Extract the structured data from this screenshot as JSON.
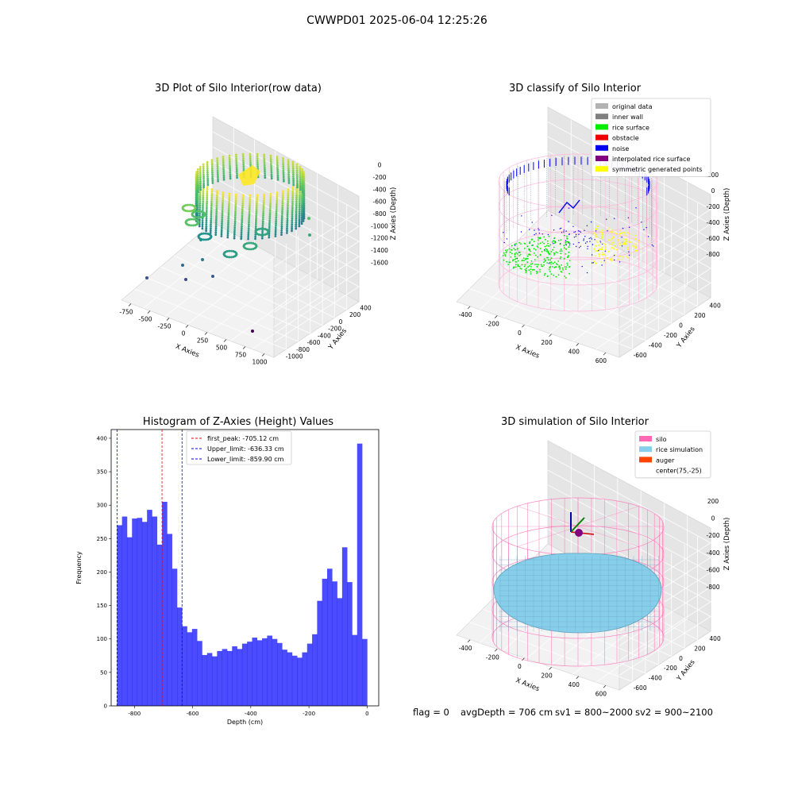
{
  "suptitle": "CWWPD01 2025-06-04 12:25:26",
  "status": {
    "flag": "flag = 0",
    "avg": "avgDepth = 706 cm",
    "sv1": "sv1 = 800~2000",
    "sv2": "sv2 = 900~2100"
  },
  "chart_data": [
    {
      "type": "scatter",
      "title": "3D Plot of Silo Interior(row data)",
      "xlabel": "X Axies",
      "ylabel": "Y Axies",
      "zlabel": "Z Axies (Depth)",
      "x_ticks": [
        "-750",
        "-500",
        "-250",
        "0",
        "250",
        "500",
        "750",
        "1000"
      ],
      "y_ticks": [
        "-1000",
        "-800",
        "-600",
        "-400",
        "-200",
        "0",
        "200",
        "400"
      ],
      "z_ticks": [
        "0",
        "-200",
        "-400",
        "-600",
        "-800",
        "-1000",
        "-1200",
        "-1400",
        "-1600"
      ],
      "colormap": [
        "#440154",
        "#3b528b",
        "#21918c",
        "#5ec962",
        "#fde725"
      ]
    },
    {
      "type": "scatter",
      "title": "3D classify of Silo Interior",
      "xlabel": "X Axies",
      "ylabel": "Y Axies",
      "zlabel": "Z Axies (Depth)",
      "x_ticks": [
        "-400",
        "-200",
        "0",
        "200",
        "400",
        "600"
      ],
      "y_ticks": [
        "-600",
        "-400",
        "-200",
        "0",
        "200",
        "400"
      ],
      "z_ticks": [
        "200",
        "0",
        "-200",
        "-400",
        "-600",
        "-800"
      ],
      "legend_position": "top-right",
      "legend": [
        {
          "label": "original data",
          "color": "#b3b3b3"
        },
        {
          "label": "inner wall",
          "color": "#808080"
        },
        {
          "label": "rice surface",
          "color": "#00ee00"
        },
        {
          "label": "obstacle",
          "color": "#ee0000"
        },
        {
          "label": "noise",
          "color": "#0000ee"
        },
        {
          "label": "interpolated rice surface",
          "color": "#800080"
        },
        {
          "label": "symmetric generated points",
          "color": "#ffff00"
        }
      ]
    },
    {
      "type": "bar",
      "title": "Histogram of Z-Axies (Height) Values",
      "xlabel": "Depth (cm)",
      "ylabel": "Frequency",
      "xlim": [
        -880,
        40
      ],
      "ylim": [
        0,
        413
      ],
      "x_ticks": [
        -800,
        -600,
        -400,
        -200,
        0
      ],
      "y_ticks": [
        0,
        50,
        100,
        150,
        200,
        250,
        300,
        350,
        400
      ],
      "bin_start": -859.9,
      "bin_width": 17.2,
      "values": [
        270,
        283,
        252,
        280,
        281,
        275,
        293,
        283,
        241,
        305,
        257,
        205,
        147,
        119,
        110,
        115,
        97,
        76,
        79,
        74,
        82,
        85,
        82,
        89,
        85,
        93,
        96,
        102,
        98,
        101,
        105,
        100,
        94,
        84,
        80,
        75,
        72,
        80,
        93,
        107,
        157,
        190,
        205,
        186,
        161,
        237,
        185,
        106,
        392,
        100
      ],
      "color": "#0000ff",
      "lines": [
        {
          "label": "first_peak: -705.12 cm",
          "x": -705.12,
          "color": "#ff0000"
        },
        {
          "label": "Upper_limit: -636.33 cm",
          "x": -636.33,
          "color": "#0000ff"
        },
        {
          "label": "Lower_limit: -859.90 cm",
          "x": -859.9,
          "color": "#0000ff"
        }
      ],
      "legend_position": "top-center"
    },
    {
      "type": "scatter",
      "title": "3D simulation of Silo Interior",
      "xlabel": "X Axies",
      "ylabel": "Y Axies",
      "zlabel": "Z Axies (Depth)",
      "x_ticks": [
        "-400",
        "-200",
        "0",
        "200",
        "400",
        "600"
      ],
      "y_ticks": [
        "-600",
        "-400",
        "-200",
        "0",
        "200",
        "400"
      ],
      "z_ticks": [
        "200",
        "0",
        "-200",
        "-400",
        "-600",
        "-800"
      ],
      "legend_position": "top-right",
      "legend": [
        {
          "label": "silo",
          "color": "#ff69b4"
        },
        {
          "label": "rice simulation",
          "color": "#87ceeb"
        },
        {
          "label": "auger",
          "color": "#ff4500"
        },
        {
          "label": "center(75,-25)",
          "color": "none"
        }
      ]
    }
  ]
}
